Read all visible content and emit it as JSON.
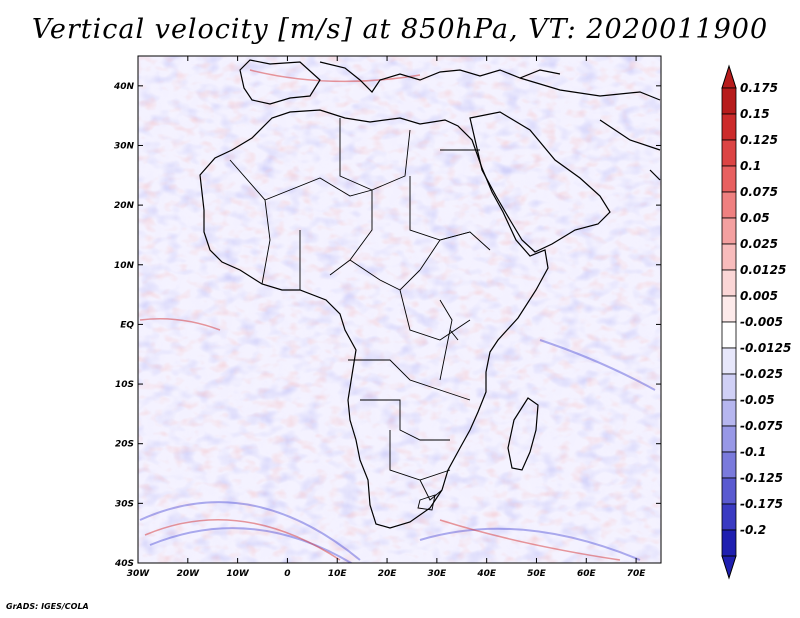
{
  "title": "Vertical velocity [m/s] at 850hPa, VT: 2020011900",
  "credit": "GrADS: IGES/COLA",
  "map": {
    "lat_labels": [
      "40N",
      "30N",
      "20N",
      "10N",
      "EQ",
      "10S",
      "20S",
      "30S",
      "40S"
    ],
    "lon_labels": [
      "30W",
      "20W",
      "10W",
      "0",
      "10E",
      "20E",
      "30E",
      "40E",
      "50E",
      "60E",
      "70E"
    ],
    "lat_range": [
      -40,
      45
    ],
    "lon_range": [
      -30,
      75
    ]
  },
  "colorbar": {
    "labels": [
      "0.175",
      "0.15",
      "0.125",
      "0.1",
      "0.075",
      "0.05",
      "0.025",
      "0.0125",
      "0.005",
      "-0.005",
      "-0.0125",
      "-0.025",
      "-0.05",
      "-0.075",
      "-0.1",
      "-0.125",
      "-0.175",
      "-0.2"
    ],
    "colors": [
      "#b71c1c",
      "#cc2b2b",
      "#dc4444",
      "#e86060",
      "#ef8080",
      "#f4a0a0",
      "#f8bcbc",
      "#fbd6d6",
      "#fdeaea",
      "#ffffff",
      "#e7e7fb",
      "#d0d0f6",
      "#b6b6ef",
      "#9898e6",
      "#7a7adc",
      "#5a5ad0",
      "#3a3ac2",
      "#1f1fb0"
    ]
  },
  "palette": {
    "field_base": "#f1efff",
    "blue": "#6f6fe0",
    "red": "#e05050"
  }
}
